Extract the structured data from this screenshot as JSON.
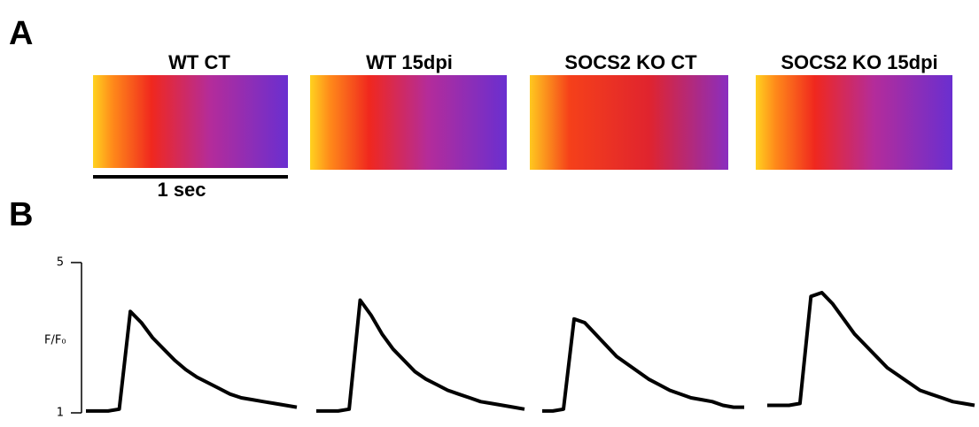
{
  "panel_a": {
    "label": "A",
    "images": [
      "WT CT",
      "WT 15dpi",
      "SOCS2 KO CT",
      "SOCS2 KO 15dpi"
    ],
    "scale_bar": "1 sec"
  },
  "panel_b": {
    "label": "B"
  },
  "chart_data": {
    "type": "line",
    "ylabel": "F/F₀",
    "ylim": [
      1,
      5
    ],
    "yticks": [
      1,
      5
    ],
    "series": [
      {
        "color": "#000000",
        "values": [
          1.05,
          1.05,
          1.05,
          1.1,
          3.7,
          3.4,
          3.0,
          2.7,
          2.4,
          2.15,
          1.95,
          1.8,
          1.65,
          1.5,
          1.4,
          1.35,
          1.3,
          1.25,
          1.2,
          1.15
        ]
      },
      {
        "color": "#000000",
        "values": [
          1.05,
          1.05,
          1.05,
          1.1,
          4.0,
          3.6,
          3.1,
          2.7,
          2.4,
          2.1,
          1.9,
          1.75,
          1.6,
          1.5,
          1.4,
          1.3,
          1.25,
          1.2,
          1.15,
          1.1
        ]
      },
      {
        "color": "#000000",
        "values": [
          1.05,
          1.05,
          1.1,
          3.5,
          3.4,
          3.1,
          2.8,
          2.5,
          2.3,
          2.1,
          1.9,
          1.75,
          1.6,
          1.5,
          1.4,
          1.35,
          1.3,
          1.2,
          1.15,
          1.15
        ]
      },
      {
        "color": "#000000",
        "values": [
          1.2,
          1.2,
          1.2,
          1.25,
          4.1,
          4.2,
          3.9,
          3.5,
          3.1,
          2.8,
          2.5,
          2.2,
          2.0,
          1.8,
          1.6,
          1.5,
          1.4,
          1.3,
          1.25,
          1.2
        ]
      }
    ]
  }
}
